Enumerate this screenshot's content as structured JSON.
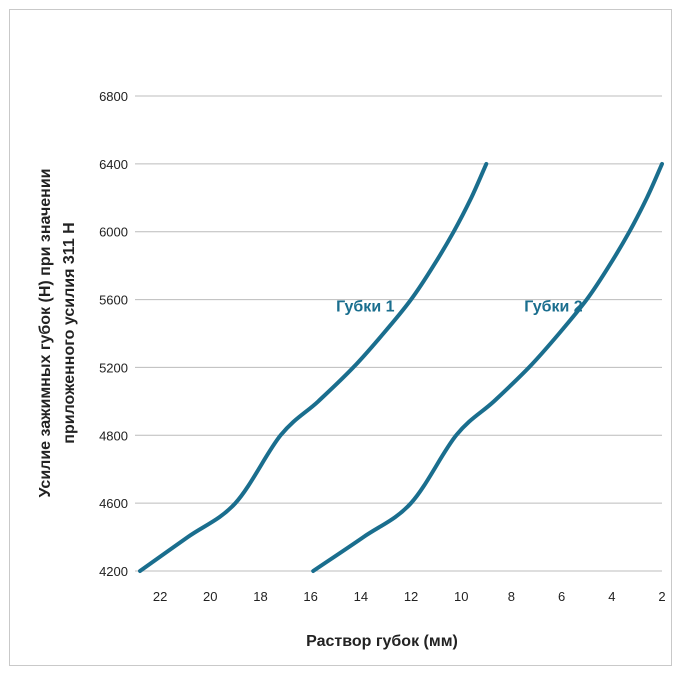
{
  "chart_data": {
    "type": "line",
    "title": "",
    "xlabel": "Раствор губок (мм)",
    "ylabel_lines": [
      "Усилие зажимных губок (Н) при значении",
      "приложенного усилия 311 Н"
    ],
    "xlim": [
      23,
      2
    ],
    "ylim": [
      4200,
      6800
    ],
    "x_reversed": true,
    "grid": true,
    "x_ticks": [
      "22",
      "20",
      "18",
      "16",
      "14",
      "12",
      "10",
      "8",
      "6",
      "4",
      "2"
    ],
    "x_tick_values": [
      22,
      20,
      18,
      16,
      14,
      12,
      10,
      8,
      6,
      4,
      2
    ],
    "y_ticks": [
      "4200",
      "4600",
      "4800",
      "5200",
      "5600",
      "6000",
      "6400",
      "6800"
    ],
    "y_tick_values": [
      4200,
      4600,
      4800,
      5200,
      5600,
      6000,
      6400,
      6800
    ],
    "line_color": "#1a6e8e",
    "series": [
      {
        "name": "Губки 1",
        "x": [
          22.8,
          20.9,
          19.0,
          17.2,
          15.7,
          14.3,
          13.1,
          12.0,
          11.1,
          10.3,
          9.6,
          9.0
        ],
        "y": [
          4200,
          4400,
          4600,
          4800,
          5000,
          5200,
          5400,
          5600,
          5800,
          6000,
          6200,
          6400
        ]
      },
      {
        "name": "Губки 2",
        "x": [
          15.9,
          13.9,
          12.0,
          10.2,
          8.7,
          7.3,
          6.1,
          5.0,
          4.1,
          3.3,
          2.6,
          2.0
        ],
        "y": [
          4200,
          4400,
          4600,
          4800,
          5000,
          5200,
          5400,
          5600,
          5800,
          6000,
          6200,
          6400
        ]
      }
    ]
  }
}
